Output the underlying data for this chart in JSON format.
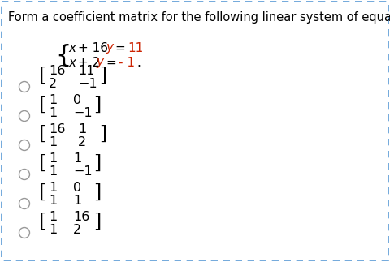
{
  "title": "Form a coefficient matrix for the following linear system of equations:",
  "title_color": "#000000",
  "title_fontsize": 10.5,
  "bg_color": "#ffffff",
  "border_color": "#5b9bd5",
  "eq_color_red": "#cc2200",
  "eq_color_black": "#000000",
  "options": [
    {
      "row1": [
        "16",
        "11"
      ],
      "row2": [
        "2",
        "−1"
      ]
    },
    {
      "row1": [
        "1",
        "0"
      ],
      "row2": [
        "1",
        "−1"
      ]
    },
    {
      "row1": [
        "16",
        "1"
      ],
      "row2": [
        "1",
        "2"
      ]
    },
    {
      "row1": [
        "1",
        "1"
      ],
      "row2": [
        "1",
        "−1"
      ]
    },
    {
      "row1": [
        "1",
        "0"
      ],
      "row2": [
        "1",
        "1"
      ]
    },
    {
      "row1": [
        "1",
        "16"
      ],
      "row2": [
        "1",
        "2"
      ]
    }
  ],
  "option_fontsize": 11.5,
  "bracket_fontsize": 17,
  "circle_color": "#999999"
}
